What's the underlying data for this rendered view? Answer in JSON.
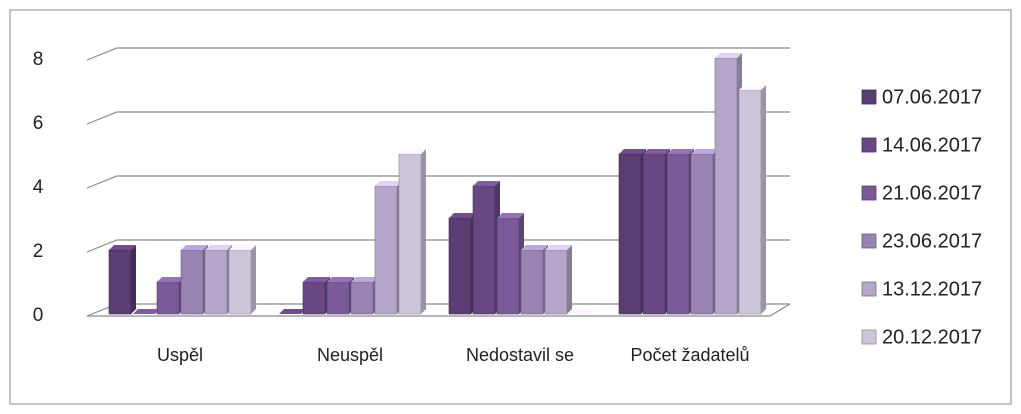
{
  "chart_data": {
    "type": "bar3d",
    "categories": [
      "Uspěl",
      "Neuspěl",
      "Nedostavil se",
      "Počet žadatelů"
    ],
    "series": [
      {
        "name": "07.06.2017",
        "color": "#5a3d72",
        "values": [
          2,
          0,
          3,
          5
        ]
      },
      {
        "name": "14.06.2017",
        "color": "#684784",
        "values": [
          0,
          1,
          4,
          5
        ]
      },
      {
        "name": "21.06.2017",
        "color": "#7a5a98",
        "values": [
          1,
          1,
          3,
          5
        ]
      },
      {
        "name": "23.06.2017",
        "color": "#9883b3",
        "values": [
          2,
          1,
          2,
          5
        ]
      },
      {
        "name": "13.12.2017",
        "color": "#b4a6c8",
        "values": [
          2,
          4,
          2,
          8
        ]
      },
      {
        "name": "20.12.2017",
        "color": "#cec5da",
        "values": [
          2,
          5,
          0,
          7
        ]
      }
    ],
    "ylim": [
      0,
      8
    ],
    "yticks": [
      0,
      2,
      4,
      6,
      8
    ],
    "grid": true,
    "legend": "right"
  }
}
